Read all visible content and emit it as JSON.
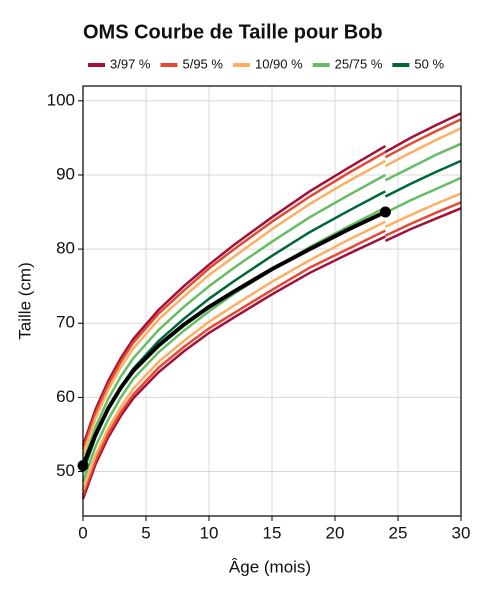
{
  "chart_data": {
    "type": "line",
    "title": "OMS Courbe de Taille pour Bob",
    "x_label": "Âge (mois)",
    "y_label": "Taille (cm)",
    "x": [
      0,
      1,
      2,
      3,
      4,
      6,
      8,
      10,
      12,
      15,
      18,
      21,
      24,
      24,
      24,
      26,
      28,
      30
    ],
    "series": [
      {
        "name": "3/97 %",
        "color": "#a50f3a",
        "lines": [
          [
            46.3,
            51.0,
            54.6,
            57.5,
            59.9,
            63.4,
            66.2,
            68.7,
            70.8,
            73.9,
            76.8,
            79.3,
            81.7,
            null,
            81.1,
            82.7,
            84.1,
            85.5
          ],
          [
            53.5,
            58.4,
            62.2,
            65.3,
            67.9,
            71.8,
            75.0,
            77.9,
            80.6,
            84.3,
            87.8,
            90.9,
            93.9,
            null,
            93.1,
            95.0,
            96.7,
            98.3
          ]
        ]
      },
      {
        "name": "5/95 %",
        "color": "#e34a33",
        "lines": [
          [
            46.8,
            51.5,
            55.1,
            58.0,
            60.4,
            64.0,
            66.8,
            69.3,
            71.4,
            74.5,
            77.5,
            80.0,
            82.5,
            null,
            81.8,
            83.4,
            84.9,
            86.3
          ],
          [
            53.0,
            57.9,
            61.7,
            64.8,
            67.4,
            71.3,
            74.4,
            77.4,
            80.0,
            83.7,
            87.1,
            90.2,
            93.1,
            null,
            92.4,
            94.2,
            95.9,
            97.5
          ]
        ]
      },
      {
        "name": "10/90 %",
        "color": "#fdae61",
        "lines": [
          [
            47.5,
            52.2,
            55.8,
            58.7,
            61.2,
            64.8,
            67.6,
            70.2,
            72.4,
            75.6,
            78.5,
            81.2,
            83.7,
            null,
            83.0,
            84.6,
            86.1,
            87.5
          ],
          [
            52.3,
            57.2,
            61.0,
            64.1,
            66.6,
            70.5,
            73.6,
            76.5,
            79.0,
            82.7,
            86.1,
            89.1,
            91.9,
            null,
            91.2,
            93.0,
            94.7,
            96.3
          ]
        ]
      },
      {
        "name": "25/75 %",
        "color": "#66bd63",
        "lines": [
          [
            48.6,
            53.4,
            57.0,
            60.0,
            62.5,
            66.1,
            69.0,
            71.6,
            74.0,
            77.2,
            80.3,
            83.0,
            85.6,
            null,
            84.9,
            86.6,
            88.1,
            89.6
          ],
          [
            51.2,
            56.0,
            59.8,
            62.8,
            65.3,
            69.1,
            72.2,
            75.0,
            77.5,
            81.0,
            84.3,
            87.2,
            90.0,
            null,
            89.3,
            91.0,
            92.7,
            94.2
          ]
        ]
      },
      {
        "name": "50 %",
        "color": "#006837",
        "lines": [
          [
            49.9,
            54.7,
            58.4,
            61.4,
            63.9,
            67.6,
            70.6,
            73.3,
            75.7,
            79.1,
            82.3,
            85.1,
            87.8,
            null,
            87.1,
            88.8,
            90.4,
            91.9
          ]
        ]
      }
    ],
    "child": {
      "color": "#000000",
      "x": [
        0,
        1,
        2,
        3,
        4,
        6,
        8,
        10,
        12,
        15,
        18,
        21,
        24
      ],
      "values": [
        50.8,
        55.0,
        58.5,
        61.3,
        63.6,
        67.0,
        69.8,
        72.2,
        74.3,
        77.3,
        80.0,
        82.6,
        85.0
      ]
    },
    "xlim": [
      0,
      30
    ],
    "xticks": [
      0,
      5,
      10,
      15,
      20,
      25,
      30
    ],
    "ylim": [
      44,
      102
    ],
    "yticks": [
      50,
      60,
      70,
      80,
      90,
      100
    ],
    "grid": true
  }
}
